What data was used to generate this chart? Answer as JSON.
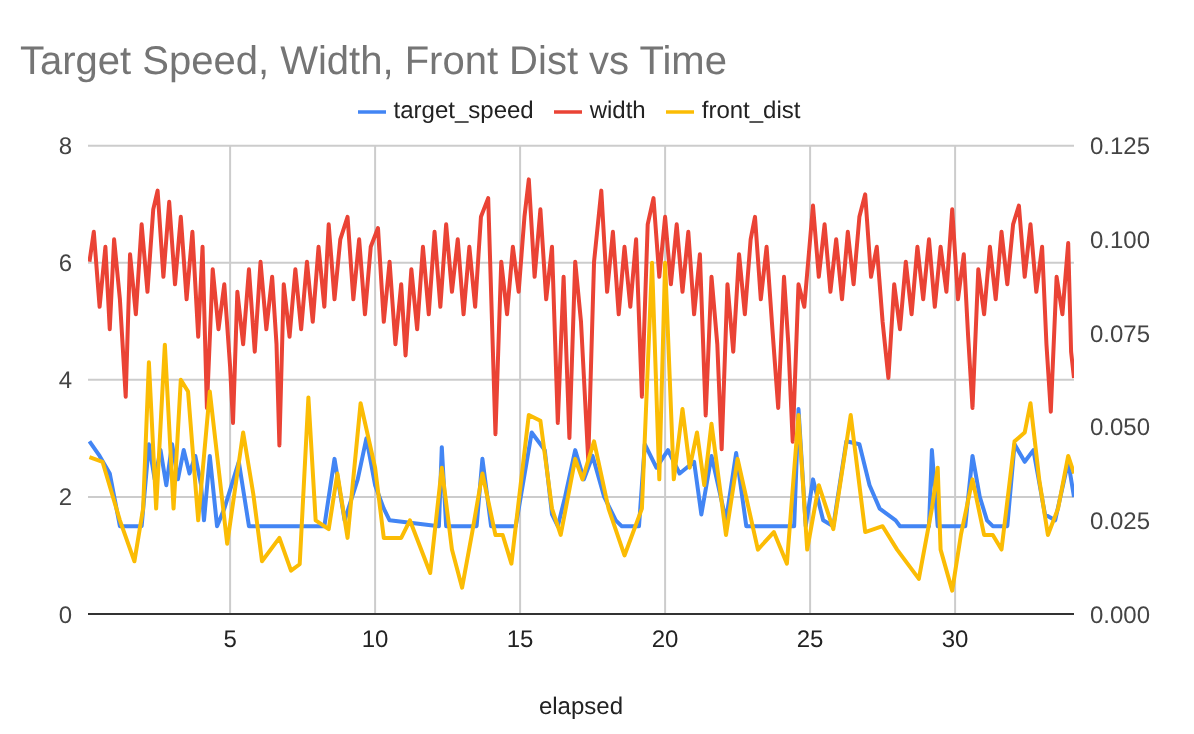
{
  "chart_data": {
    "type": "line",
    "title": "Target Speed, Width, Front Dist vs Time",
    "xlabel": "elapsed",
    "legend": "top",
    "grid": true,
    "marker": "none",
    "line_style": "solid",
    "xlim": [
      0.1,
      34.1
    ],
    "xticks": [
      5,
      10,
      15,
      20,
      25,
      30
    ],
    "ylim": [
      0,
      8
    ],
    "yticks": [
      0,
      2,
      4,
      6,
      8
    ],
    "y2lim": [
      0,
      0.125
    ],
    "y2ticks": [
      {
        "value": 0,
        "label": "0.000"
      },
      0.025,
      {
        "value": 0.05,
        "label": "0.050"
      },
      0.075,
      {
        "value": 0.1,
        "label": "0.100"
      },
      0.125
    ],
    "series": [
      {
        "name": "target_speed",
        "color": "#4285f4",
        "x": [
          0.15,
          0.5,
          0.85,
          1.2,
          1.95,
          2.2,
          2.4,
          2.6,
          2.8,
          3.0,
          3.2,
          3.4,
          3.6,
          3.8,
          4.0,
          4.1,
          4.3,
          4.55,
          4.8,
          5.3,
          5.65,
          8.25,
          8.6,
          8.95,
          9.4,
          9.7,
          10.0,
          10.3,
          10.5,
          12.2,
          12.3,
          12.45,
          13.5,
          13.7,
          14.0,
          14.85,
          15.4,
          15.85,
          16.1,
          16.3,
          16.55,
          16.9,
          17.2,
          17.5,
          17.9,
          18.3,
          18.5,
          19.1,
          19.3,
          19.7,
          20.1,
          20.5,
          21.0,
          21.25,
          21.6,
          22.1,
          22.45,
          22.8,
          24.45,
          24.6,
          24.85,
          25.1,
          25.45,
          25.8,
          26.25,
          26.7,
          27.05,
          27.4,
          27.95,
          28.1,
          29.1,
          29.2,
          29.4,
          30.35,
          30.6,
          30.85,
          31.1,
          31.3,
          31.8,
          32.05,
          32.4,
          32.7,
          33.1,
          33.45,
          33.9,
          34.1
        ],
        "values": [
          2.95,
          2.7,
          2.4,
          1.5,
          1.5,
          2.9,
          2.3,
          2.8,
          2.2,
          2.9,
          2.3,
          2.8,
          2.4,
          2.7,
          2.2,
          1.6,
          2.7,
          1.5,
          1.8,
          2.6,
          1.5,
          1.5,
          2.65,
          1.6,
          2.3,
          3.0,
          2.2,
          1.8,
          1.6,
          1.5,
          2.85,
          1.5,
          1.5,
          2.65,
          1.5,
          1.5,
          3.1,
          2.8,
          1.7,
          1.5,
          2.0,
          2.8,
          2.3,
          2.7,
          2.0,
          1.6,
          1.5,
          1.5,
          2.9,
          2.5,
          2.8,
          2.4,
          2.6,
          1.7,
          2.7,
          1.6,
          2.75,
          1.5,
          1.5,
          3.5,
          1.5,
          2.3,
          1.6,
          1.5,
          2.95,
          2.9,
          2.2,
          1.8,
          1.6,
          1.5,
          1.5,
          2.8,
          1.5,
          1.5,
          2.7,
          2.0,
          1.6,
          1.5,
          1.5,
          2.9,
          2.6,
          2.8,
          1.7,
          1.6,
          2.6,
          2.0
        ]
      },
      {
        "name": "width",
        "color": "#ea4335",
        "axis": "y2",
        "x": [
          0.15,
          0.3,
          0.5,
          0.7,
          0.85,
          1.0,
          1.2,
          1.4,
          1.55,
          1.75,
          1.95,
          2.15,
          2.35,
          2.5,
          2.7,
          2.9,
          3.1,
          3.3,
          3.5,
          3.7,
          3.9,
          4.05,
          4.2,
          4.4,
          4.6,
          4.8,
          5.0,
          5.1,
          5.25,
          5.45,
          5.65,
          5.85,
          6.05,
          6.25,
          6.45,
          6.6,
          6.7,
          6.85,
          7.05,
          7.25,
          7.45,
          7.65,
          7.85,
          8.05,
          8.25,
          8.4,
          8.6,
          8.8,
          9.05,
          9.25,
          9.45,
          9.65,
          9.85,
          10.1,
          10.3,
          10.5,
          10.7,
          10.9,
          11.05,
          11.25,
          11.45,
          11.65,
          11.85,
          12.05,
          12.25,
          12.45,
          12.65,
          12.85,
          13.05,
          13.25,
          13.45,
          13.65,
          13.9,
          14.15,
          14.35,
          14.55,
          14.75,
          14.95,
          15.15,
          15.3,
          15.5,
          15.7,
          15.9,
          16.1,
          16.3,
          16.5,
          16.7,
          16.9,
          17.1,
          17.35,
          17.55,
          17.8,
          18.0,
          18.2,
          18.4,
          18.6,
          18.8,
          19.0,
          19.2,
          19.4,
          19.6,
          19.8,
          20.0,
          20.2,
          20.4,
          20.6,
          20.8,
          21.0,
          21.2,
          21.4,
          21.6,
          21.8,
          21.95,
          22.15,
          22.35,
          22.55,
          22.75,
          22.95,
          23.1,
          23.3,
          23.5,
          23.7,
          23.9,
          24.1,
          24.25,
          24.4,
          24.6,
          24.8,
          25.0,
          25.1,
          25.3,
          25.5,
          25.7,
          25.9,
          26.1,
          26.3,
          26.5,
          26.7,
          26.9,
          27.1,
          27.3,
          27.5,
          27.7,
          27.9,
          28.1,
          28.3,
          28.5,
          28.7,
          28.9,
          29.1,
          29.3,
          29.5,
          29.7,
          29.9,
          30.1,
          30.3,
          30.45,
          30.6,
          30.8,
          31.0,
          31.2,
          31.4,
          31.6,
          31.8,
          32.0,
          32.2,
          32.4,
          32.6,
          32.8,
          33.0,
          33.15,
          33.3,
          33.5,
          33.7,
          33.9,
          34.0,
          34.1
        ],
        "values": [
          0.094,
          0.102,
          0.082,
          0.098,
          0.076,
          0.1,
          0.084,
          0.058,
          0.096,
          0.08,
          0.104,
          0.086,
          0.108,
          0.113,
          0.09,
          0.11,
          0.088,
          0.106,
          0.084,
          0.102,
          0.074,
          0.098,
          0.055,
          0.092,
          0.076,
          0.088,
          0.066,
          0.051,
          0.086,
          0.072,
          0.092,
          0.07,
          0.094,
          0.076,
          0.09,
          0.072,
          0.045,
          0.088,
          0.074,
          0.092,
          0.076,
          0.094,
          0.078,
          0.098,
          0.082,
          0.104,
          0.084,
          0.1,
          0.106,
          0.084,
          0.1,
          0.08,
          0.098,
          0.103,
          0.078,
          0.094,
          0.072,
          0.088,
          0.069,
          0.092,
          0.076,
          0.098,
          0.08,
          0.102,
          0.082,
          0.104,
          0.086,
          0.1,
          0.08,
          0.098,
          0.082,
          0.106,
          0.111,
          0.048,
          0.094,
          0.08,
          0.098,
          0.086,
          0.106,
          0.116,
          0.09,
          0.108,
          0.084,
          0.098,
          0.051,
          0.09,
          0.047,
          0.094,
          0.078,
          0.041,
          0.094,
          0.113,
          0.086,
          0.102,
          0.08,
          0.098,
          0.082,
          0.1,
          0.058,
          0.104,
          0.111,
          0.09,
          0.106,
          0.088,
          0.104,
          0.086,
          0.102,
          0.08,
          0.096,
          0.053,
          0.09,
          0.072,
          0.044,
          0.088,
          0.07,
          0.096,
          0.08,
          0.1,
          0.106,
          0.084,
          0.098,
          0.076,
          0.055,
          0.09,
          0.072,
          0.046,
          0.088,
          0.082,
          0.1,
          0.109,
          0.09,
          0.104,
          0.086,
          0.1,
          0.084,
          0.102,
          0.088,
          0.106,
          0.112,
          0.09,
          0.098,
          0.078,
          0.063,
          0.088,
          0.076,
          0.094,
          0.08,
          0.098,
          0.084,
          0.1,
          0.082,
          0.098,
          0.086,
          0.108,
          0.084,
          0.096,
          0.074,
          0.055,
          0.092,
          0.08,
          0.098,
          0.084,
          0.102,
          0.088,
          0.104,
          0.109,
          0.09,
          0.104,
          0.086,
          0.098,
          0.072,
          0.054,
          0.09,
          0.08,
          0.099,
          0.07,
          0.063
        ]
      },
      {
        "name": "front_dist",
        "color": "#fbbc04",
        "x": [
          0.15,
          0.6,
          1.2,
          1.7,
          2.0,
          2.2,
          2.45,
          2.75,
          3.05,
          3.3,
          3.55,
          3.9,
          4.3,
          4.6,
          4.9,
          5.45,
          5.8,
          6.1,
          6.7,
          7.1,
          7.4,
          7.7,
          7.95,
          8.4,
          8.7,
          9.05,
          9.5,
          10.0,
          10.3,
          10.9,
          11.2,
          11.9,
          12.3,
          12.65,
          13.0,
          13.35,
          13.7,
          14.15,
          14.4,
          14.7,
          15.3,
          15.7,
          16.1,
          16.4,
          16.9,
          17.15,
          17.55,
          18.05,
          18.6,
          19.2,
          19.55,
          19.8,
          20.0,
          20.3,
          20.6,
          20.85,
          21.1,
          21.35,
          21.6,
          22.1,
          22.5,
          23.2,
          23.75,
          24.2,
          24.6,
          24.9,
          25.3,
          25.8,
          26.4,
          26.6,
          26.9,
          27.5,
          28.0,
          28.75,
          29.2,
          29.4,
          29.5,
          29.9,
          30.2,
          30.6,
          31.0,
          31.3,
          31.6,
          32.05,
          32.4,
          32.6,
          32.9,
          33.2,
          33.55,
          33.9,
          34.1
        ],
        "values": [
          2.68,
          2.6,
          1.6,
          0.9,
          1.8,
          4.3,
          1.8,
          4.6,
          1.8,
          4.0,
          3.8,
          1.6,
          3.8,
          2.5,
          1.2,
          3.1,
          2.05,
          0.9,
          1.3,
          0.74,
          0.85,
          3.7,
          1.6,
          1.45,
          2.4,
          1.3,
          3.6,
          2.5,
          1.3,
          1.3,
          1.6,
          0.7,
          2.5,
          1.1,
          0.45,
          1.4,
          2.4,
          1.35,
          1.35,
          0.86,
          3.4,
          3.3,
          1.8,
          1.35,
          2.65,
          2.3,
          2.95,
          1.8,
          1.0,
          1.8,
          6.0,
          2.3,
          6.0,
          2.3,
          3.5,
          2.5,
          3.1,
          2.2,
          3.25,
          1.35,
          2.65,
          1.1,
          1.4,
          0.86,
          3.4,
          1.1,
          2.2,
          1.45,
          3.4,
          2.6,
          1.4,
          1.5,
          1.1,
          0.6,
          1.8,
          2.5,
          1.1,
          0.4,
          1.35,
          2.3,
          1.35,
          1.35,
          1.1,
          2.95,
          3.1,
          3.6,
          2.3,
          1.35,
          1.8,
          2.7,
          2.4
        ]
      }
    ]
  }
}
